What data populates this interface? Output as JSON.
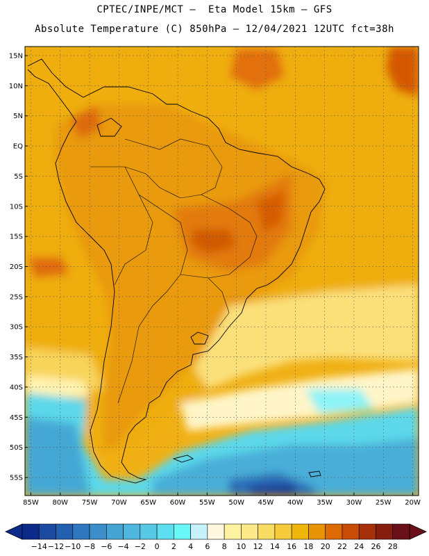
{
  "title": {
    "line1": "CPTEC/INPE/MCT –  Eta Model 15km – GFS",
    "line2": "Absolute Temperature (C) 850hPa – 12/04/2021 12UTC fct=38h"
  },
  "map": {
    "region": "South America",
    "lat_labels": [
      "15N",
      "10N",
      "5N",
      "EQ",
      "5S",
      "10S",
      "15S",
      "20S",
      "25S",
      "30S",
      "35S",
      "40S",
      "45S",
      "50S",
      "55S"
    ],
    "lat_values": [
      15,
      10,
      5,
      0,
      -5,
      -10,
      -15,
      -20,
      -25,
      -30,
      -35,
      -40,
      -45,
      -50,
      -55
    ],
    "lon_labels": [
      "85W",
      "80W",
      "75W",
      "70W",
      "65W",
      "60W",
      "55W",
      "50W",
      "45W",
      "40W",
      "35W",
      "30W",
      "25W",
      "20W"
    ],
    "lon_values": [
      -85,
      -80,
      -75,
      -70,
      -65,
      -60,
      -55,
      -50,
      -45,
      -40,
      -35,
      -30,
      -25,
      -20
    ],
    "lat_range": [
      -58,
      16.5
    ],
    "lon_range": [
      -86,
      -19
    ]
  },
  "colorbar": {
    "labels": [
      "-14",
      "-12",
      "-10",
      "-8",
      "-6",
      "-4",
      "-2",
      "0",
      "2",
      "4",
      "6",
      "8",
      "10",
      "12",
      "14",
      "16",
      "18",
      "20",
      "22",
      "24",
      "26",
      "28"
    ],
    "colors": [
      "#0b2a8a",
      "#1c4aa0",
      "#2460b0",
      "#2f78bf",
      "#3a8fca",
      "#45a4d3",
      "#4fb7dd",
      "#57c9e6",
      "#5ddff0",
      "#6af7f7",
      "#c6f3fb",
      "#fff8e0",
      "#fff2a0",
      "#fde98a",
      "#f9dc62",
      "#f6cb3c",
      "#efb60a",
      "#e99405",
      "#dd6a04",
      "#c84c06",
      "#a6300a",
      "#861e10",
      "#6b0f18"
    ],
    "units": "C"
  }
}
